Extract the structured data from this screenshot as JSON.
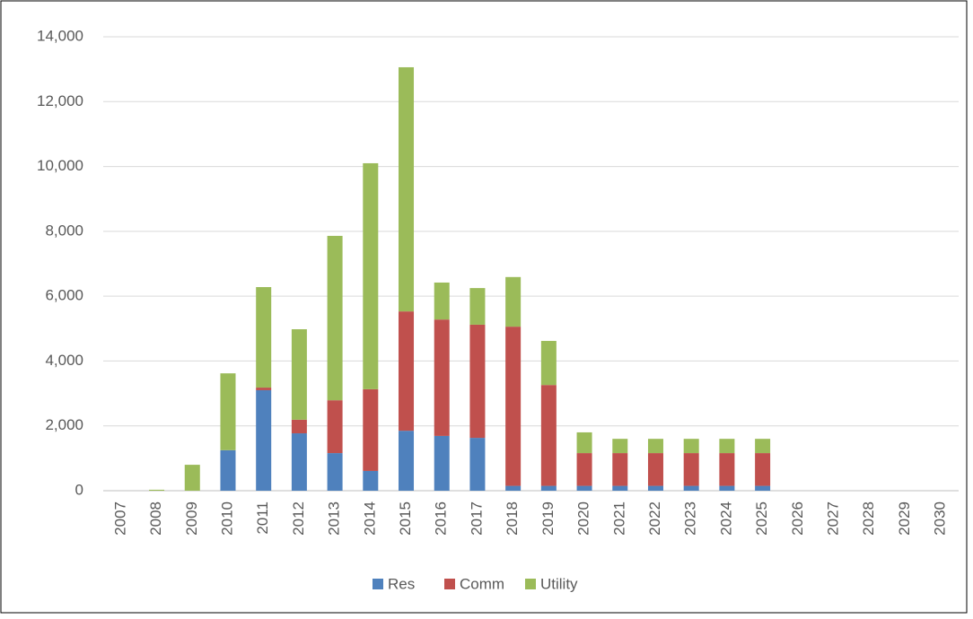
{
  "chart_data": {
    "type": "bar",
    "stacked": true,
    "categories": [
      "2007",
      "2008",
      "2009",
      "2010",
      "2011",
      "2012",
      "2013",
      "2014",
      "2015",
      "2016",
      "2017",
      "2018",
      "2019",
      "2020",
      "2021",
      "2022",
      "2023",
      "2024",
      "2025",
      "2026",
      "2027",
      "2028",
      "2029",
      "2030"
    ],
    "series": [
      {
        "name": "Res",
        "color": "#4f81bd",
        "values": [
          0,
          0,
          0,
          1250,
          3100,
          1770,
          1160,
          610,
          1850,
          1690,
          1630,
          150,
          150,
          150,
          150,
          150,
          150,
          150,
          150,
          0,
          0,
          0,
          0,
          0
        ]
      },
      {
        "name": "Comm",
        "color": "#c0504d",
        "values": [
          0,
          0,
          0,
          0,
          80,
          420,
          1630,
          2520,
          3680,
          3590,
          3490,
          4910,
          3110,
          1010,
          1010,
          1010,
          1010,
          1010,
          1010,
          0,
          0,
          0,
          0,
          0
        ]
      },
      {
        "name": "Utility",
        "color": "#9bbb59",
        "values": [
          0,
          30,
          800,
          2370,
          3100,
          2790,
          5070,
          6970,
          7530,
          1140,
          1130,
          1530,
          1360,
          640,
          440,
          440,
          440,
          440,
          440,
          0,
          0,
          0,
          0,
          0
        ]
      }
    ],
    "ylim": [
      0,
      14000
    ],
    "yticks": [
      0,
      {
        "value": 2000,
        "label": "2,000"
      },
      {
        "value": 4000,
        "label": "4,000"
      },
      {
        "value": 6000,
        "label": "6,000"
      },
      {
        "value": 8000,
        "label": "8,000"
      },
      {
        "value": 10000,
        "label": "10,000"
      },
      {
        "value": 12000,
        "label": "12,000"
      },
      {
        "value": 14000,
        "label": "14,000"
      }
    ],
    "grid": true,
    "legend": "bottom"
  }
}
